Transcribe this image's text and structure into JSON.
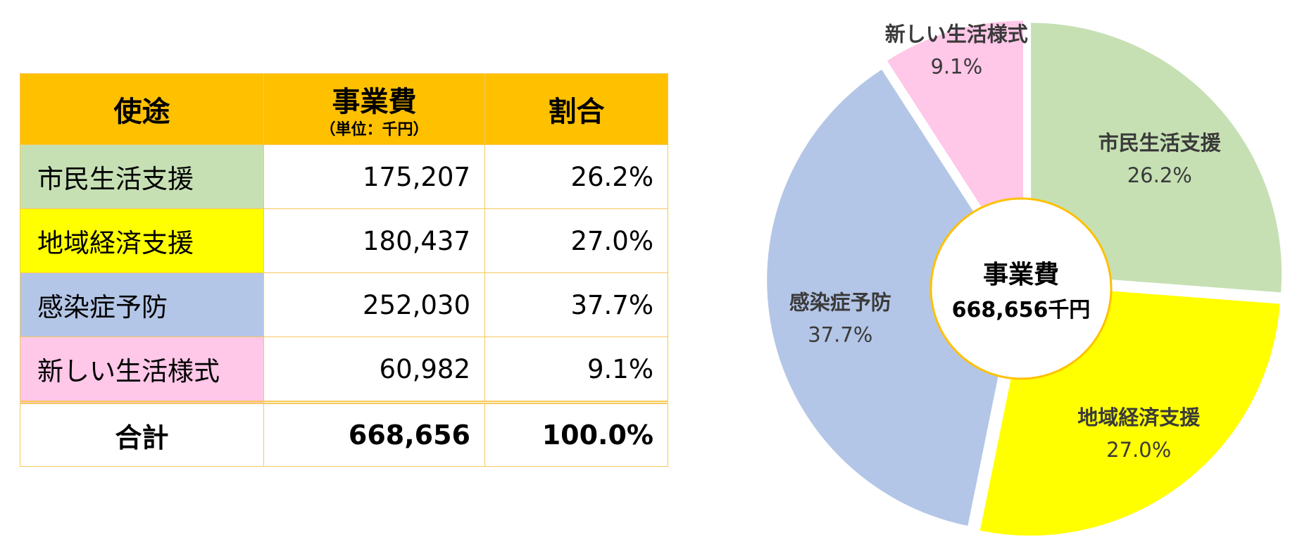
{
  "table": {
    "headers": {
      "use": "使途",
      "cost": "事業費",
      "cost_unit": "（単位：千円）",
      "ratio": "割合"
    },
    "rows": [
      {
        "label": "市民生活支援",
        "cost": "175,207",
        "ratio": "26.2%",
        "color": "#c6e0b4"
      },
      {
        "label": "地域経済支援",
        "cost": "180,437",
        "ratio": "27.0%",
        "color": "#ffff00"
      },
      {
        "label": "感染症予防",
        "cost": "252,030",
        "ratio": "37.7%",
        "color": "#b4c6e7"
      },
      {
        "label": "新しい生活様式",
        "cost": "60,982",
        "ratio": "9.1%",
        "color": "#ffc7e8"
      }
    ],
    "total": {
      "label": "合計",
      "cost": "668,656",
      "ratio": "100.0%"
    }
  },
  "chart_data": {
    "type": "pie",
    "center_label": "事業費",
    "center_value": "668,656千円",
    "slices": [
      {
        "name": "市民生活支援",
        "value": 175207,
        "percent": 26.2,
        "percent_label": "26.2%",
        "color": "#c6e0b4"
      },
      {
        "name": "地域経済支援",
        "value": 180437,
        "percent": 27.0,
        "percent_label": "27.0%",
        "color": "#ffff00"
      },
      {
        "name": "感染症予防",
        "value": 252030,
        "percent": 37.7,
        "percent_label": "37.7%",
        "color": "#b4c6e7"
      },
      {
        "name": "新しい生活様式",
        "value": 60982,
        "percent": 9.1,
        "percent_label": "9.1%",
        "color": "#ffc7e8"
      }
    ],
    "donut": true,
    "exploded": true,
    "accent": "#ffc000"
  }
}
